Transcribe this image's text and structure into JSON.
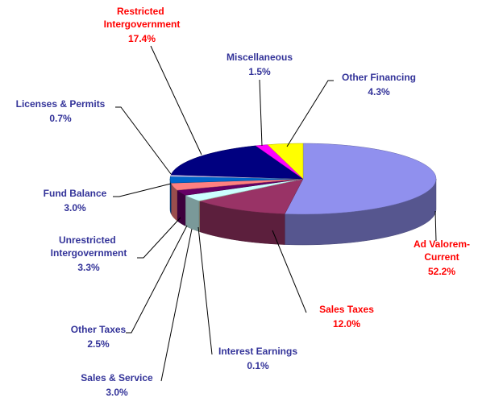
{
  "chart_data": {
    "type": "pie3d",
    "categories": [
      "Ad Valorem-Current",
      "Sales Taxes",
      "Interest Earnings",
      "Sales & Service",
      "Other Taxes",
      "Unrestricted Intergovernment",
      "Fund Balance",
      "Licenses & Permits",
      "Restricted Intergovernment",
      "Miscellaneous",
      "Other Financing"
    ],
    "values": [
      52.2,
      12.0,
      0.1,
      3.0,
      2.5,
      3.3,
      3.0,
      0.7,
      17.4,
      1.5,
      4.3
    ],
    "value_labels": [
      "52.2%",
      "12.0%",
      "0.1%",
      "3.0%",
      "2.5%",
      "3.3%",
      "3.0%",
      "0.7%",
      "17.4%",
      "1.5%",
      "4.3%"
    ],
    "colors": [
      "#9090ee",
      "#993366",
      "#ffffcc",
      "#ccffff",
      "#660066",
      "#ff8080",
      "#0066cc",
      "#ccccff",
      "#000080",
      "#ff00ff",
      "#ffff00"
    ],
    "label_colors": [
      "#ff0000",
      "#ff0000",
      "#333399",
      "#333399",
      "#333399",
      "#333399",
      "#333399",
      "#333399",
      "#ff0000",
      "#333399",
      "#333399"
    ]
  }
}
